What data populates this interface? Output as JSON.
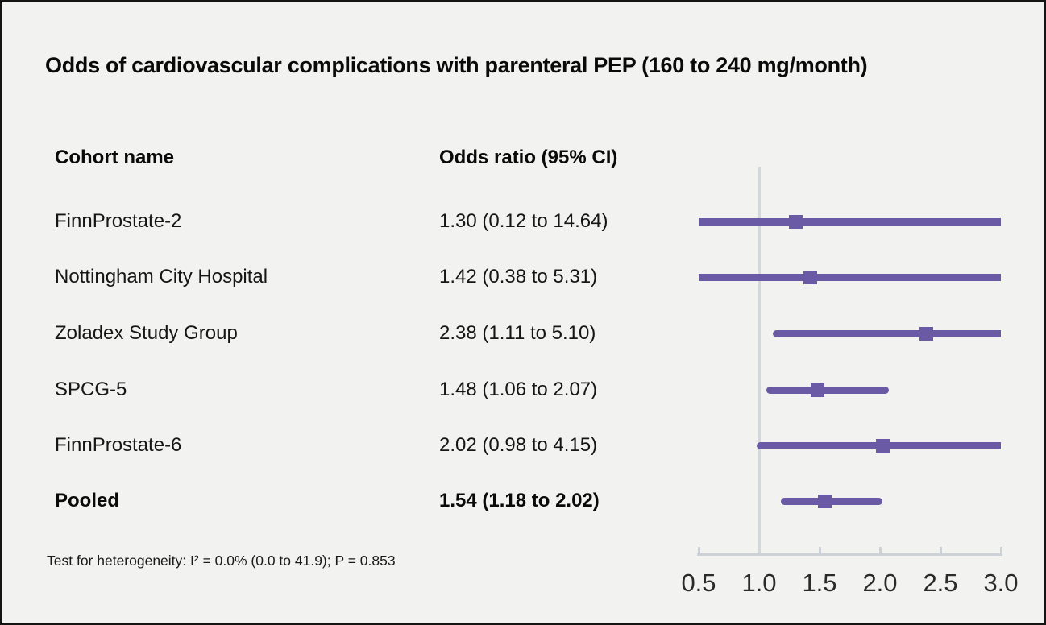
{
  "page": {
    "background": "#f2f2f1",
    "border_color": "#141414"
  },
  "chart_data": {
    "type": "forest",
    "title": "Odds of cardiovascular complications with parenteral PEP (160 to 240 mg/month)",
    "columns": [
      "Cohort name",
      "Odds ratio (95% CI)"
    ],
    "rows": [
      {
        "name": "FinnProstate-2",
        "label": "1.30 (0.12 to 14.64)",
        "estimate": 1.3,
        "lower": 0.12,
        "upper": 14.64,
        "bold": false
      },
      {
        "name": "Nottingham City Hospital",
        "label": "1.42 (0.38 to 5.31)",
        "estimate": 1.42,
        "lower": 0.38,
        "upper": 5.31,
        "bold": false
      },
      {
        "name": "Zoladex Study Group",
        "label": "2.38 (1.11 to 5.10)",
        "estimate": 2.38,
        "lower": 1.11,
        "upper": 5.1,
        "bold": false
      },
      {
        "name": "SPCG-5",
        "label": "1.48 (1.06 to 2.07)",
        "estimate": 1.48,
        "lower": 1.06,
        "upper": 2.07,
        "bold": false
      },
      {
        "name": "FinnProstate-6",
        "label": "2.02 (0.98 to 4.15)",
        "estimate": 2.02,
        "lower": 0.98,
        "upper": 4.15,
        "bold": false
      },
      {
        "name": "Pooled",
        "label": "1.54 (1.18 to 2.02)",
        "estimate": 1.54,
        "lower": 1.18,
        "upper": 2.02,
        "bold": true
      }
    ],
    "footnote": "Test for heterogeneity: I² = 0.0% (0.0 to 41.9); P = 0.853",
    "xlim": [
      0.5,
      3.0
    ],
    "x_ticks": [
      0.5,
      1.0,
      1.5,
      2.0,
      2.5,
      3.0
    ],
    "x_tick_labels": [
      "0.5",
      "1.0",
      "1.5",
      "2.0",
      "2.5",
      "3.0"
    ],
    "reference_line": 1.0,
    "scale": "linear",
    "grid": false,
    "legend": "none",
    "marker_color": "#6a5aa6",
    "axis_color": "#cdd2d9",
    "reference_line_color": "#d3d7de"
  }
}
